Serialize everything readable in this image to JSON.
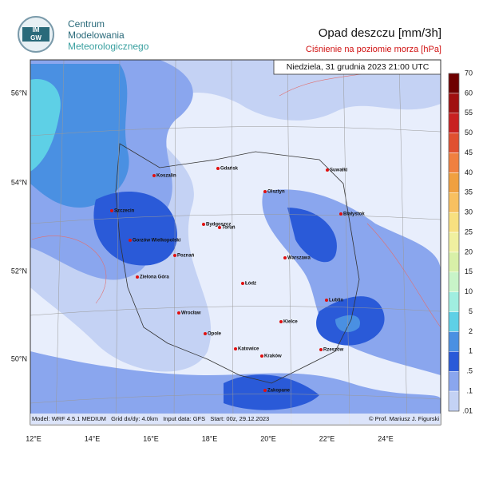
{
  "header": {
    "logo_top": "IM",
    "logo_bottom": "GW",
    "org_lines": [
      "Centrum",
      "Modelowania",
      "Meteorologicznego"
    ],
    "title": "Opad deszczu [mm/3h]",
    "subtitle": "Ciśnienie na poziomie morza [hPa]"
  },
  "map": {
    "timestamp": "Niedziela, 31 grudnia 2023 21:00 UTC",
    "lat_labels": [
      "56°N",
      "54°N",
      "52°N",
      "50°N"
    ],
    "lon_labels": [
      "12°E",
      "14°E",
      "16°E",
      "18°E",
      "20°E",
      "22°E",
      "24°E"
    ],
    "cities": [
      "Koszalin",
      "Gdańsk",
      "Suwałki",
      "Olsztyn",
      "Szczecin",
      "Białystok",
      "Bydgoszcz",
      "Toruń",
      "Gorzów Wielkopolski",
      "Poznań",
      "Warszawa",
      "Zielona Góra",
      "Łódź",
      "Lublin",
      "Wrocław",
      "Kielce",
      "Opole",
      "Rzeszów",
      "Katowice",
      "Kraków",
      "Zakopane"
    ],
    "footer_left": "Model: WRF 4.5.1 MEDIUM   Grid dx/dy: 4.0km   Input data: GFS   Start: 00z, 29.12.2023",
    "footer_right": "© Prof. Mariusz J. Figurski"
  },
  "colorbar": {
    "labels": [
      "70",
      "60",
      "55",
      "50",
      "45",
      "40",
      "35",
      "30",
      "25",
      "20",
      "15",
      "10",
      "5",
      "2",
      "1",
      ".5",
      ".1",
      ".01"
    ],
    "colors": [
      "#6e0000",
      "#a01010",
      "#c82020",
      "#e05030",
      "#f08040",
      "#f0a040",
      "#f8c060",
      "#f8e080",
      "#f0f0a0",
      "#d8f0a8",
      "#c8f4c8",
      "#a0eee0",
      "#5ed0e6",
      "#4a90e2",
      "#2a5ad8",
      "#8aa6ee",
      "#c4d2f4"
    ]
  }
}
